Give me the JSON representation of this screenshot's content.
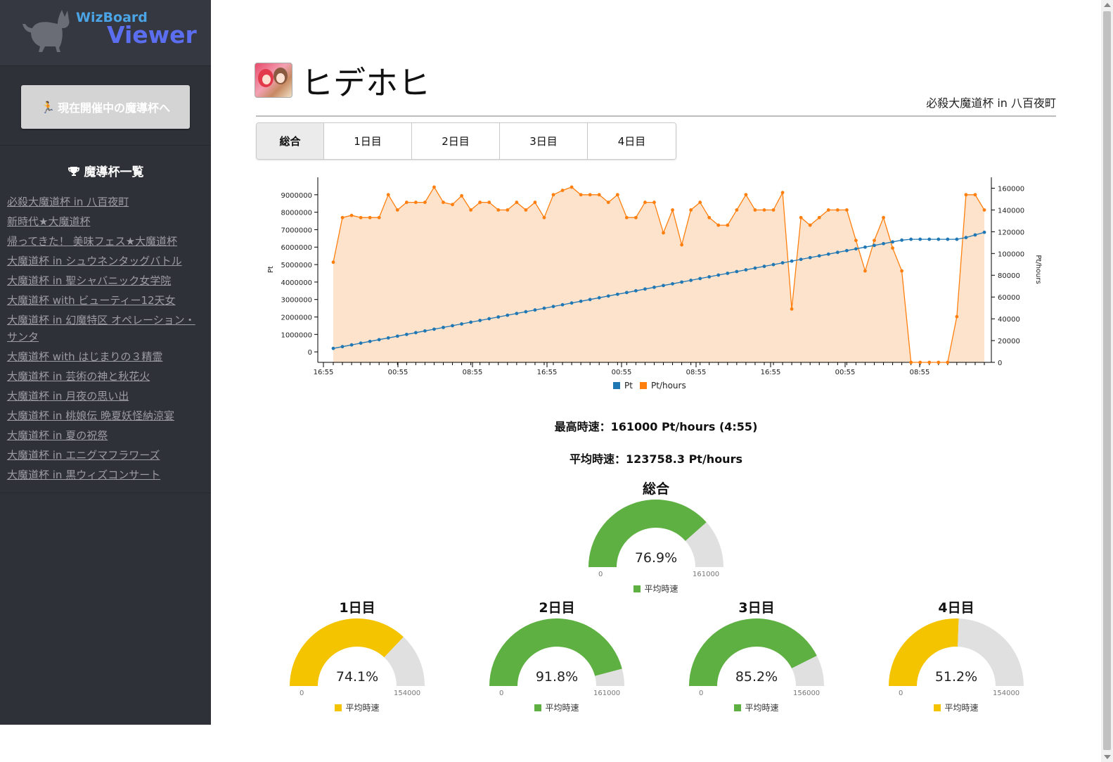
{
  "sidebar": {
    "logo_small": "WizBoard",
    "logo_big": "Viewer",
    "current_button": "現在開催中の魔導杯へ",
    "list_title": "魔導杯一覧",
    "cups": [
      "必殺大魔道杯 in 八百夜町",
      "新時代★大魔道杯",
      "帰ってきた！ 美味フェス★大魔道杯",
      "大魔道杯 in シュウネンタッグバトル",
      "大魔道杯 in 聖シャバニック女学院",
      "大魔道杯 with ビューティー12天女",
      "大魔道杯 in 幻魔特区 オペレーション・サンタ",
      "大魔道杯 with はじまりの３精霊",
      "大魔道杯 in 芸術の神と秋花火",
      "大魔道杯 in 月夜の思い出",
      "大魔道杯 in 桃娘伝 晩夏妖怪納涼宴",
      "大魔道杯 in 夏の祝祭",
      "大魔道杯 in エニグマフラワーズ",
      "大魔道杯 in 黒ウィズコンサート"
    ]
  },
  "header": {
    "player_name": "ヒデホヒ",
    "event_name": "必殺大魔道杯 in 八百夜町"
  },
  "tabs": [
    "総合",
    "1日目",
    "2日目",
    "3日目",
    "4日目"
  ],
  "stats": {
    "max_speed": "最高時速：161000 Pt/hours (4:55)",
    "avg_speed": "平均時速：123758.3 Pt/hours"
  },
  "gauges": {
    "legend_label": "平均時速",
    "overall": {
      "title": "総合",
      "percent_text": "76.9%",
      "value": 0.769,
      "min": "0",
      "max": "161000",
      "color": "#5eb043"
    },
    "days": [
      {
        "title": "1日目",
        "percent_text": "74.1%",
        "value": 0.741,
        "min": "0",
        "max": "154000",
        "color": "#f5c400"
      },
      {
        "title": "2日目",
        "percent_text": "91.8%",
        "value": 0.918,
        "min": "0",
        "max": "161000",
        "color": "#5eb043"
      },
      {
        "title": "3日目",
        "percent_text": "85.2%",
        "value": 0.852,
        "min": "0",
        "max": "156000",
        "color": "#5eb043"
      },
      {
        "title": "4日目",
        "percent_text": "51.2%",
        "value": 0.512,
        "min": "0",
        "max": "154000",
        "color": "#f5c400"
      }
    ]
  },
  "chart_data": {
    "type": "line",
    "x_tick_labels": [
      "16:55",
      "00:55",
      "08:55",
      "16:55",
      "00:55",
      "08:55",
      "16:55",
      "00:55",
      "08:55"
    ],
    "y_left": {
      "label": "Pt",
      "ylim": [
        -600000,
        10000000
      ],
      "ticks": [
        0,
        1000000,
        2000000,
        3000000,
        4000000,
        5000000,
        6000000,
        7000000,
        8000000,
        9000000
      ]
    },
    "y_right": {
      "label": "Pt/hours",
      "ylim": [
        0,
        170000
      ],
      "ticks": [
        0,
        20000,
        40000,
        60000,
        80000,
        100000,
        120000,
        140000,
        160000
      ]
    },
    "legend": [
      "Pt",
      "Pt/hours"
    ],
    "legend_position": "bottom",
    "colors": {
      "pt": "#1f77b4",
      "pth": "#ff7f0e",
      "area": "#fde3cc"
    },
    "series": [
      {
        "name": "Pt/hours",
        "axis": "right",
        "values": [
          92000,
          133000,
          135000,
          133000,
          133000,
          133000,
          154000,
          140000,
          147000,
          147000,
          147000,
          161000,
          147000,
          145000,
          153000,
          140000,
          147000,
          147000,
          140000,
          140000,
          147000,
          140000,
          147000,
          133000,
          154000,
          158000,
          161000,
          154000,
          154000,
          154000,
          147000,
          154000,
          133000,
          133000,
          147000,
          147000,
          119000,
          140000,
          108000,
          140000,
          147000,
          133000,
          126000,
          126000,
          140000,
          154000,
          140000,
          140000,
          140000,
          156000,
          49000,
          133000,
          126000,
          133000,
          140000,
          140000,
          140000,
          112000,
          84000,
          112000,
          133000,
          105000,
          84000,
          0,
          0,
          0,
          0,
          0,
          42000,
          154000,
          154000,
          140000
        ]
      },
      {
        "name": "Pt",
        "axis": "left",
        "values": [
          200000,
          300000,
          400000,
          500000,
          600000,
          700000,
          800000,
          900000,
          1000000,
          1100000,
          1200000,
          1300000,
          1400000,
          1500000,
          1600000,
          1700000,
          1800000,
          1900000,
          2000000,
          2100000,
          2200000,
          2300000,
          2400000,
          2500000,
          2600000,
          2700000,
          2800000,
          2900000,
          3000000,
          3100000,
          3200000,
          3300000,
          3400000,
          3500000,
          3600000,
          3700000,
          3800000,
          3900000,
          4000000,
          4100000,
          4200000,
          4300000,
          4400000,
          4500000,
          4600000,
          4700000,
          4800000,
          4900000,
          5000000,
          5100000,
          5200000,
          5300000,
          5400000,
          5500000,
          5600000,
          5700000,
          5800000,
          5900000,
          6000000,
          6100000,
          6200000,
          6300000,
          6400000,
          6450000,
          6450000,
          6450000,
          6450000,
          6450000,
          6450000,
          6550000,
          6700000,
          6850000
        ]
      }
    ]
  }
}
